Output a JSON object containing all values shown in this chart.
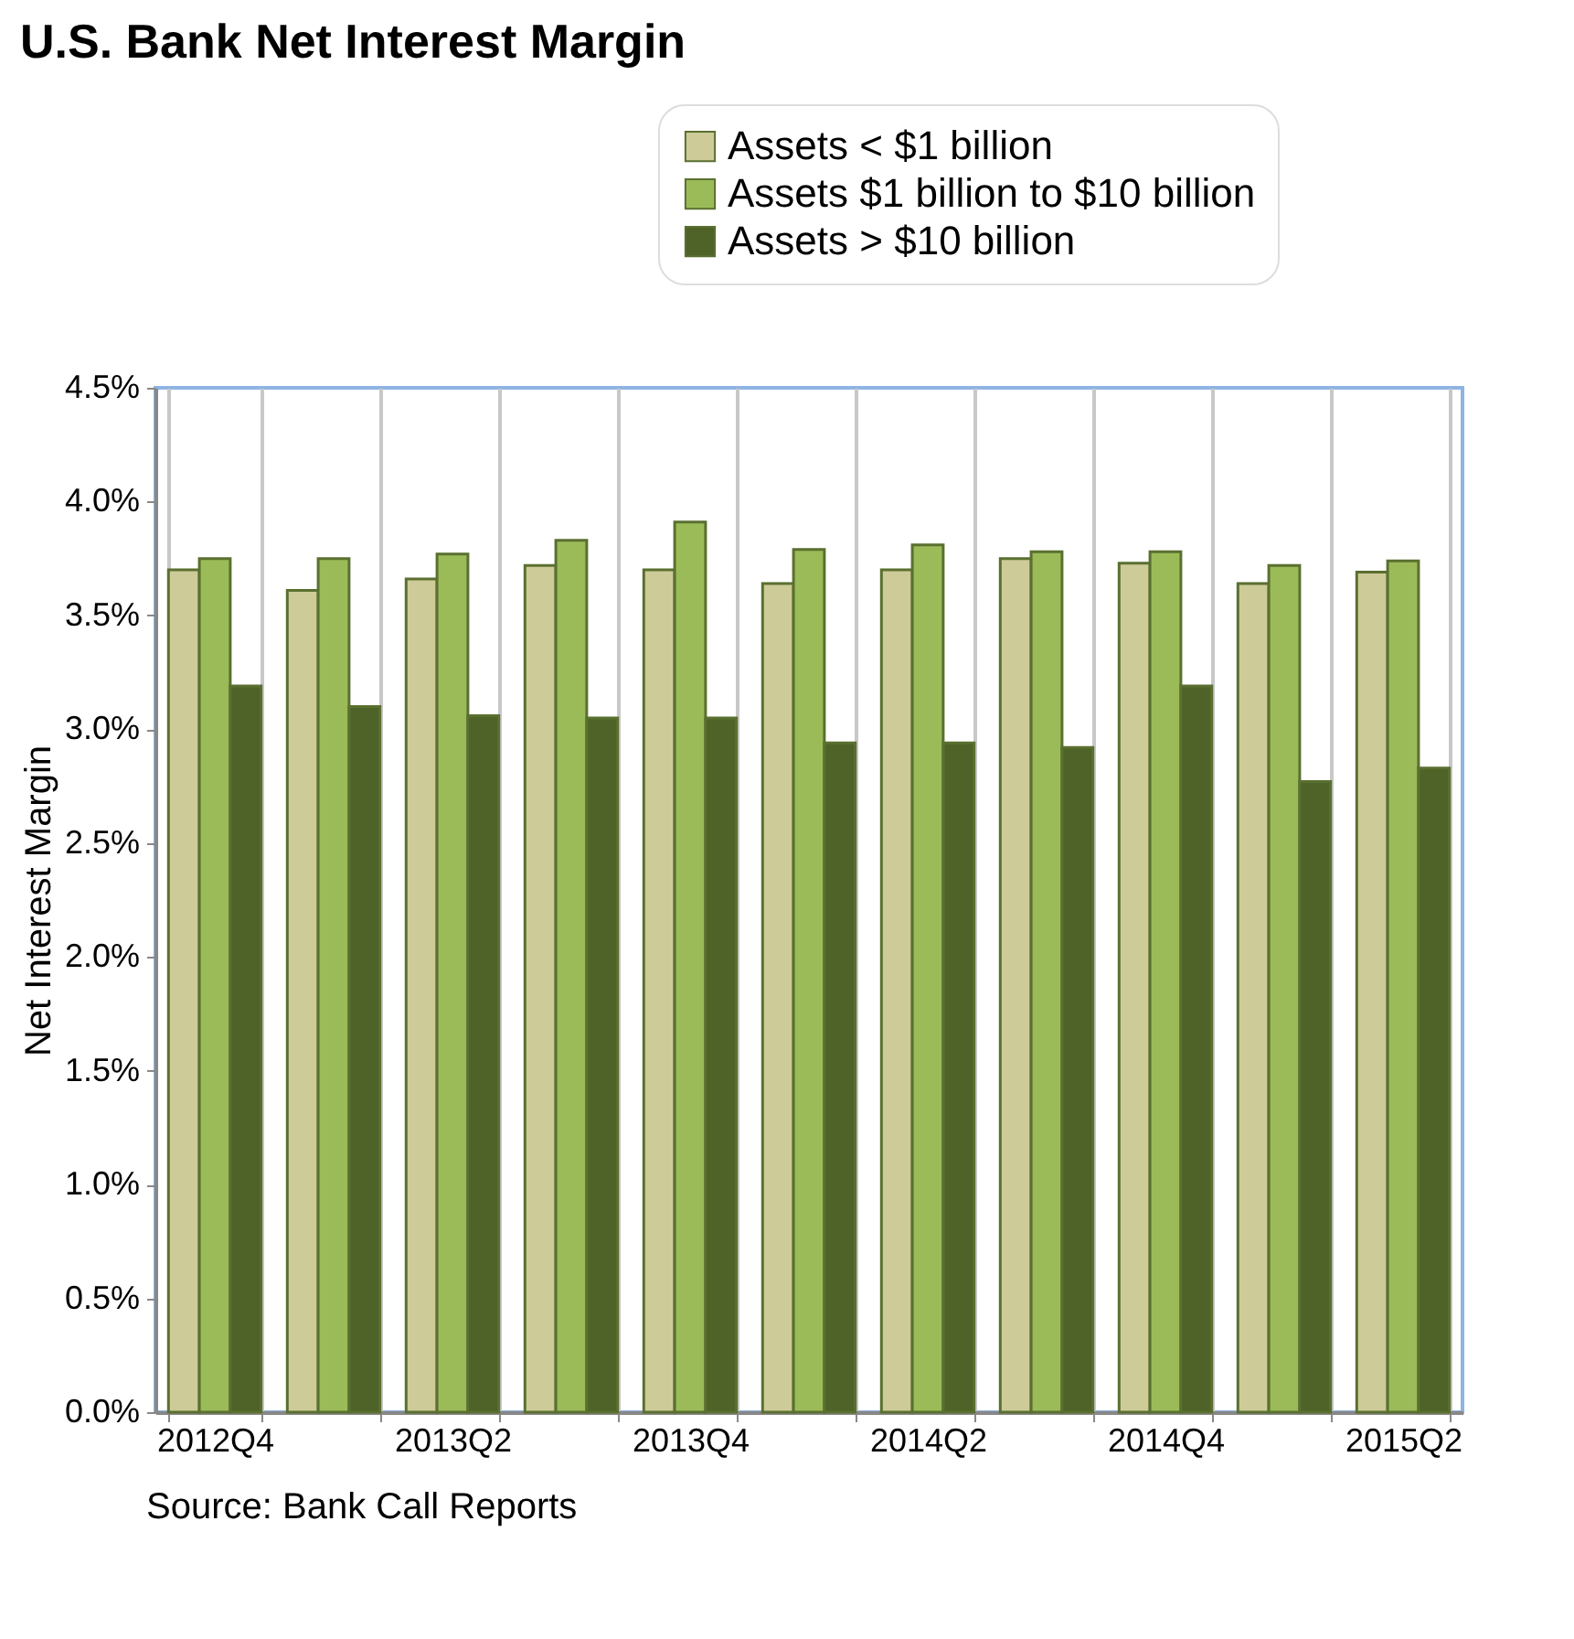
{
  "chart_data": {
    "type": "bar",
    "title": "U.S. Bank Net Interest Margin",
    "ylabel": "Net Interest Margin",
    "categories": [
      "2012Q4",
      null,
      "2013Q2",
      null,
      "2013Q4",
      null,
      "2014Q2",
      null,
      "2014Q4",
      null,
      "2015Q2"
    ],
    "series": [
      {
        "name": "Assets < $1 billion",
        "color": "#cdcb98",
        "values": [
          3.7,
          3.61,
          3.66,
          3.72,
          3.7,
          3.64,
          3.7,
          3.75,
          3.73,
          3.64,
          3.69
        ]
      },
      {
        "name": "Assets $1 billion to $10 billion",
        "color": "#9bbb59",
        "values": [
          3.75,
          3.75,
          3.77,
          3.83,
          3.91,
          3.79,
          3.81,
          3.78,
          3.78,
          3.72,
          3.74
        ]
      },
      {
        "name": "Assets > $10 billion",
        "color": "#4f6228",
        "values": [
          3.19,
          3.1,
          3.06,
          3.05,
          3.05,
          2.94,
          2.94,
          2.92,
          3.19,
          2.77,
          2.83
        ]
      }
    ],
    "ylim": [
      0,
      4.5
    ],
    "yticks": [
      {
        "value": 0,
        "label": "0.0%"
      },
      {
        "value": 0.5,
        "label": "0.5%"
      },
      {
        "value": 1,
        "label": "1.0%"
      },
      {
        "value": 1.5,
        "label": "1.5%"
      },
      {
        "value": 2,
        "label": "2.0%"
      },
      {
        "value": 2.5,
        "label": "2.5%"
      },
      {
        "value": 3,
        "label": "3.0%"
      },
      {
        "value": 3.5,
        "label": "3.5%"
      },
      {
        "value": 4,
        "label": "4.0%"
      },
      {
        "value": 4.5,
        "label": "4.5%"
      }
    ],
    "grid": "x",
    "legend": "top right",
    "annotations": [
      "Source: Bank Call Reports"
    ]
  }
}
